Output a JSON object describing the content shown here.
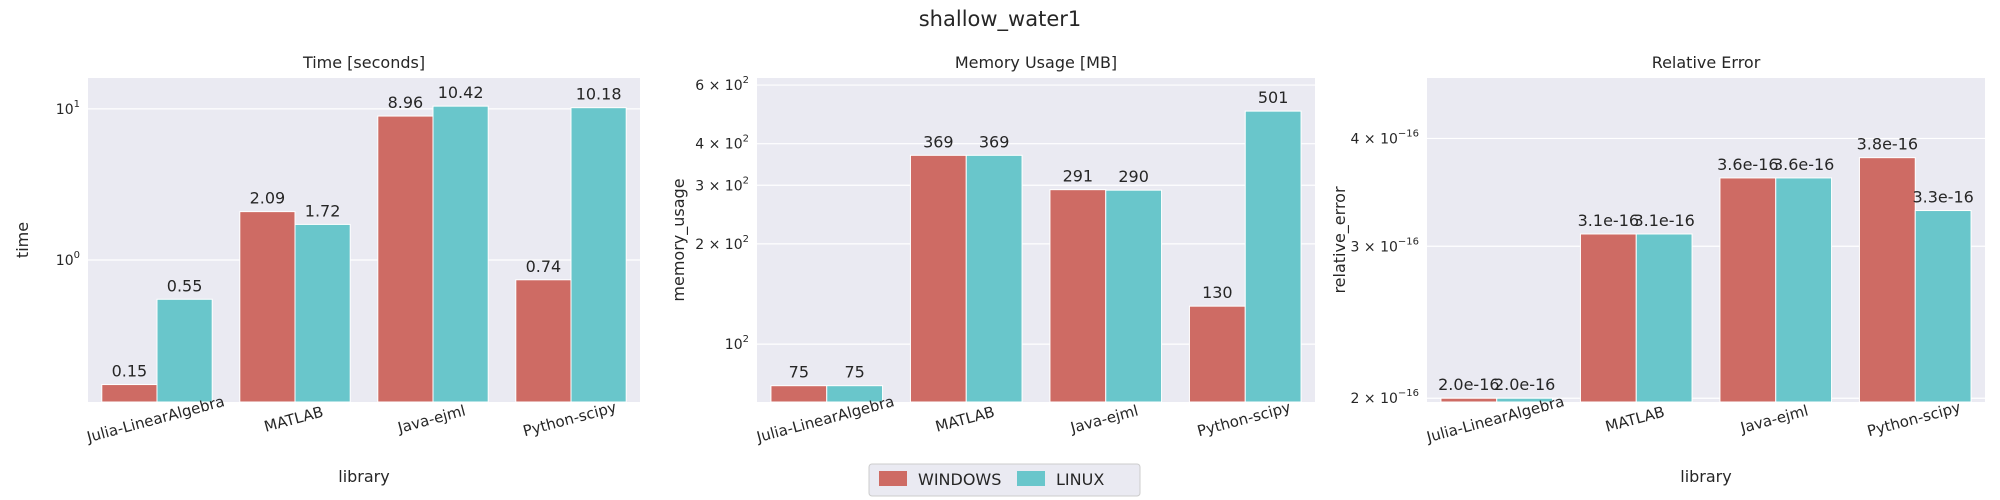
{
  "figure": {
    "title": "shallow_water1"
  },
  "legend": {
    "placement": "bottom-center",
    "entries": [
      {
        "name": "WINDOWS",
        "color": "#ce6b64"
      },
      {
        "name": "LINUX",
        "color": "#69c6cb"
      }
    ]
  },
  "chart_data": [
    {
      "type": "bar",
      "title": "Time [seconds]",
      "xlabel": "library",
      "ylabel": "time",
      "yscale": "log",
      "ylim": [
        0.115,
        16
      ],
      "categories": [
        "Julia-LinearAlgebra",
        "MATLAB",
        "Java-ejml",
        "Python-scipy"
      ],
      "series": [
        {
          "name": "WINDOWS",
          "values": [
            0.15,
            2.09,
            8.96,
            0.74
          ],
          "labels": [
            "0.15",
            "2.09",
            "8.96",
            "0.74"
          ]
        },
        {
          "name": "LINUX",
          "values": [
            0.55,
            1.72,
            10.42,
            10.18
          ],
          "labels": [
            "0.55",
            "1.72",
            "10.42",
            "10.18"
          ]
        }
      ],
      "yticks": [
        {
          "value": 1,
          "base": "10",
          "exp": "0"
        },
        {
          "value": 10,
          "base": "10",
          "exp": "1"
        }
      ],
      "grid": true
    },
    {
      "type": "bar",
      "title": "Memory Usage [MB]",
      "xlabel": "library",
      "ylabel": "memory_usage",
      "yscale": "log",
      "ylim": [
        67,
        630
      ],
      "categories": [
        "Julia-LinearAlgebra",
        "MATLAB",
        "Java-ejml",
        "Python-scipy"
      ],
      "series": [
        {
          "name": "WINDOWS",
          "values": [
            75,
            369,
            291,
            130
          ],
          "labels": [
            "75",
            "369",
            "291",
            "130"
          ]
        },
        {
          "name": "LINUX",
          "values": [
            75,
            369,
            290,
            501
          ],
          "labels": [
            "75",
            "369",
            "290",
            "501"
          ]
        }
      ],
      "yticks": [
        {
          "value": 100,
          "base": "10",
          "exp": "2"
        },
        {
          "value": 200,
          "base": "2 × 10",
          "exp": "2"
        },
        {
          "value": 300,
          "base": "3 × 10",
          "exp": "2"
        },
        {
          "value": 400,
          "base": "4 × 10",
          "exp": "2"
        },
        {
          "value": 600,
          "base": "6 × 10",
          "exp": "2"
        }
      ],
      "grid": true
    },
    {
      "type": "bar",
      "title": "Relative Error",
      "xlabel": "library",
      "ylabel": "relative_error",
      "yscale": "log",
      "ylim": [
        1.98e-16,
        4.7e-16
      ],
      "categories": [
        "Julia-LinearAlgebra",
        "MATLAB",
        "Java-ejml",
        "Python-scipy"
      ],
      "series": [
        {
          "name": "WINDOWS",
          "values": [
            2e-16,
            3.1e-16,
            3.6e-16,
            3.8e-16
          ],
          "labels": [
            "2.0e-16",
            "3.1e-16",
            "3.6e-16",
            "3.8e-16"
          ]
        },
        {
          "name": "LINUX",
          "values": [
            2e-16,
            3.1e-16,
            3.6e-16,
            3.3e-16
          ],
          "labels": [
            "2.0e-16",
            "3.1e-16",
            "3.6e-16",
            "3.3e-16"
          ]
        }
      ],
      "yticks": [
        {
          "value": 2e-16,
          "base": "2 × 10",
          "exp": "−16"
        },
        {
          "value": 3e-16,
          "base": "3 × 10",
          "exp": "−16"
        },
        {
          "value": 4e-16,
          "base": "4 × 10",
          "exp": "−16"
        }
      ],
      "grid": true
    }
  ]
}
